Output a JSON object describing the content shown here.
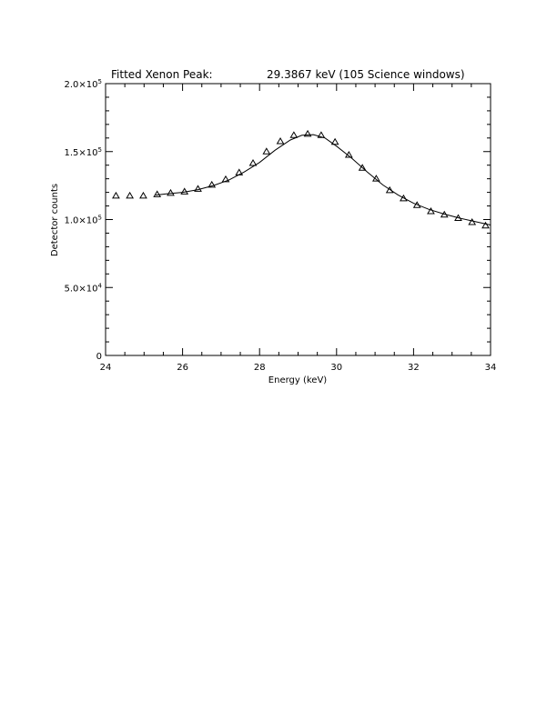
{
  "colors": {
    "line": "#000000",
    "background": "#ffffff"
  },
  "chart_data": {
    "type": "scatter",
    "title_left": "Fitted Xenon Peak:",
    "title_right": "29.3867 keV (105 Science windows)",
    "xlabel": "Energy (keV)",
    "ylabel": "Detector counts",
    "xlim": [
      24,
      34
    ],
    "ylim": [
      0,
      200000
    ],
    "grid": false,
    "legend": "none",
    "x_ticks": [
      {
        "value": 24,
        "label": "24"
      },
      {
        "value": 26,
        "label": "26"
      },
      {
        "value": 28,
        "label": "28"
      },
      {
        "value": 30,
        "label": "30"
      },
      {
        "value": 32,
        "label": "32"
      },
      {
        "value": 34,
        "label": "34"
      }
    ],
    "y_ticks": [
      {
        "value": 0,
        "mantissa": "0",
        "exp": ""
      },
      {
        "value": 50000,
        "mantissa": "5.0×10",
        "exp": "4"
      },
      {
        "value": 100000,
        "mantissa": "1.0×10",
        "exp": "5"
      },
      {
        "value": 150000,
        "mantissa": "1.5×10",
        "exp": "5"
      },
      {
        "value": 200000,
        "mantissa": "2.0×10",
        "exp": "5"
      }
    ],
    "series": [
      {
        "marker": "triangle",
        "x": [
          24.27,
          24.63,
          24.98,
          25.34,
          25.69,
          26.05,
          26.4,
          26.76,
          27.12,
          27.47,
          27.83,
          28.18,
          28.54,
          28.89,
          29.25,
          29.6,
          29.96,
          30.32,
          30.67,
          31.03,
          31.38,
          31.74,
          32.09,
          32.45,
          32.8,
          33.16,
          33.52,
          33.87
        ],
        "y": [
          117500,
          117500,
          117500,
          118500,
          119500,
          120500,
          122500,
          125500,
          129500,
          134500,
          141500,
          150000,
          157500,
          162000,
          163000,
          162000,
          157000,
          147500,
          138000,
          130000,
          121500,
          115500,
          110500,
          106000,
          103500,
          101000,
          98000,
          95500
        ]
      },
      {
        "line": "solid",
        "x": [
          25.3,
          25.6,
          26.0,
          26.4,
          26.8,
          27.2,
          27.6,
          28.0,
          28.4,
          28.8,
          29.1,
          29.4,
          29.7,
          30.0,
          30.4,
          30.8,
          31.2,
          31.6,
          32.0,
          32.4,
          32.8,
          33.2,
          33.6,
          34.0
        ],
        "y": [
          118000,
          119000,
          120000,
          122000,
          125000,
          129000,
          135000,
          142000,
          151000,
          158500,
          162000,
          162500,
          160000,
          154000,
          145000,
          135000,
          125500,
          118000,
          112000,
          107500,
          104000,
          101000,
          98500,
          96000
        ]
      }
    ]
  }
}
